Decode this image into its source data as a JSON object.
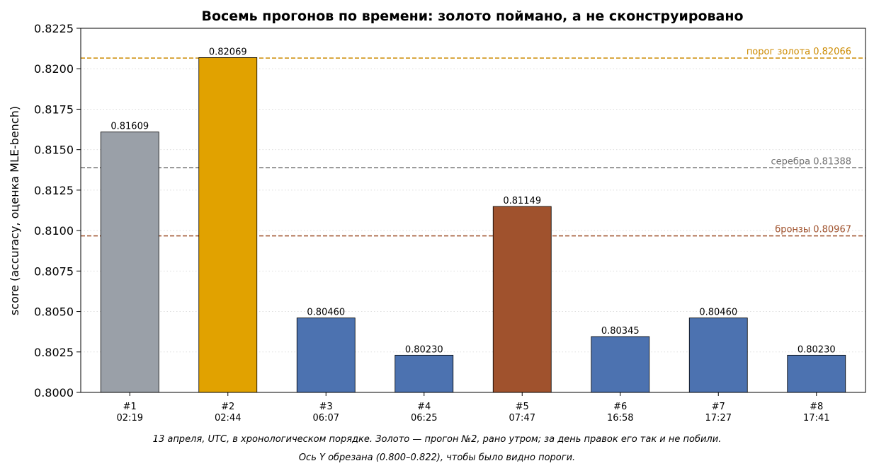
{
  "chart_data": {
    "type": "bar",
    "title": "Восемь прогонов по времени: золото поймано, а не сконструировано",
    "ylabel": "score (accuracy, оценка MLE-bench)",
    "xlabel": "",
    "ylim": [
      0.8,
      0.8225
    ],
    "yticks": [
      "0.8000",
      "0.8025",
      "0.8050",
      "0.8075",
      "0.8100",
      "0.8125",
      "0.8150",
      "0.8175",
      "0.8200",
      "0.8225"
    ],
    "grid": "horizontal-dotted",
    "categories": [
      {
        "run": "#1",
        "time": "02:19"
      },
      {
        "run": "#2",
        "time": "02:44"
      },
      {
        "run": "#3",
        "time": "06:07"
      },
      {
        "run": "#4",
        "time": "06:25"
      },
      {
        "run": "#5",
        "time": "07:47"
      },
      {
        "run": "#6",
        "time": "16:58"
      },
      {
        "run": "#7",
        "time": "17:27"
      },
      {
        "run": "#8",
        "time": "17:41"
      }
    ],
    "values": [
      0.81609,
      0.82069,
      0.8046,
      0.8023,
      0.81149,
      0.80345,
      0.8046,
      0.8023
    ],
    "value_labels": [
      "0.81609",
      "0.82069",
      "0.80460",
      "0.80230",
      "0.81149",
      "0.80345",
      "0.80460",
      "0.80230"
    ],
    "bar_colors": [
      "#9aa0a8",
      "#e1a200",
      "#4c72b0",
      "#4c72b0",
      "#a0522d",
      "#4c72b0",
      "#4c72b0",
      "#4c72b0"
    ],
    "thresholds": [
      {
        "key": "gold",
        "value": 0.82066,
        "label": "порог золота 0.82066",
        "color": "#cc8a00"
      },
      {
        "key": "silver",
        "value": 0.81388,
        "label": "серебра 0.81388",
        "color": "#707070"
      },
      {
        "key": "bronze",
        "value": 0.80967,
        "label": "бронзы 0.80967",
        "color": "#a0522d"
      }
    ]
  },
  "captions": [
    "13 апреля, UTC, в хронологическом порядке. Золото — прогон №2, рано утром; за день правок его так и не побили.",
    "Ось Y обрезана (0.800–0.822), чтобы было видно пороги."
  ]
}
